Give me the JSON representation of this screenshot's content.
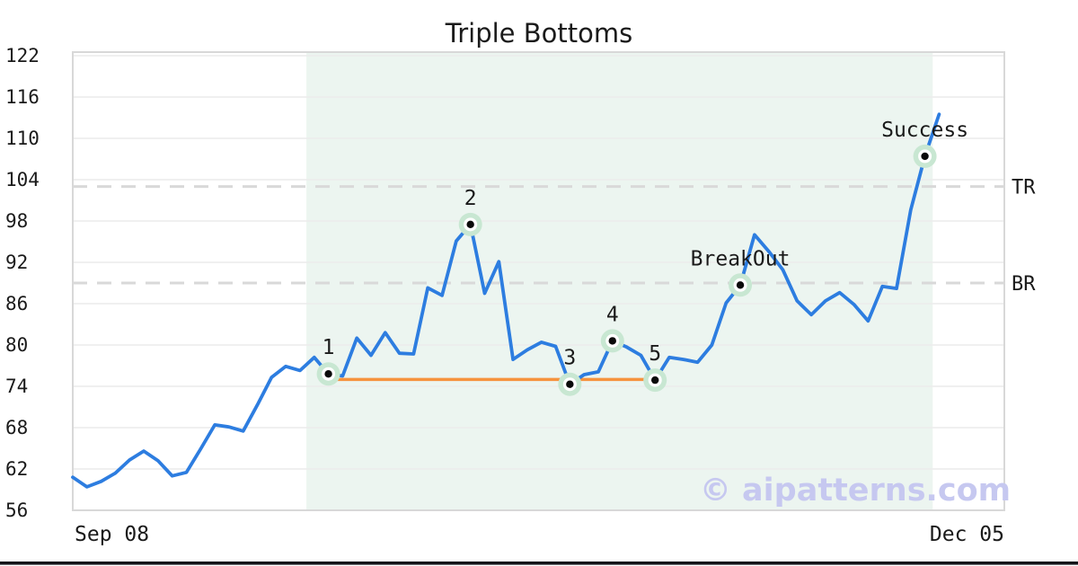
{
  "chart_data": {
    "type": "line",
    "title": "Triple Bottoms",
    "x_start_label": "Sep 08",
    "x_end_label": "Dec 05",
    "ylim": [
      56,
      122
    ],
    "y_ticks": [
      56,
      62,
      68,
      74,
      80,
      86,
      92,
      98,
      104,
      110,
      116,
      122
    ],
    "grid": "horizontal",
    "legend": "none",
    "series": [
      {
        "name": "price",
        "color": "#2d7de0",
        "values": [
          60.8,
          59.4,
          60.2,
          61.4,
          63.3,
          64.6,
          63.2,
          61.0,
          61.5,
          64.9,
          68.4,
          68.1,
          67.5,
          71.3,
          75.3,
          76.9,
          76.3,
          78.2,
          75.8,
          75.5,
          81.0,
          78.5,
          81.8,
          78.8,
          78.7,
          88.3,
          87.2,
          95.1,
          97.5,
          87.5,
          92.1,
          77.9,
          79.3,
          80.4,
          79.8,
          74.3,
          75.7,
          76.1,
          80.6,
          79.7,
          78.5,
          74.9,
          78.2,
          77.9,
          77.5,
          80.0,
          86.1,
          88.7,
          96.0,
          93.6,
          90.9,
          86.4,
          84.4,
          86.4,
          87.6,
          85.9,
          83.5,
          88.5,
          88.2,
          99.6,
          107.4,
          113.5
        ]
      }
    ],
    "markers": [
      {
        "index": 18,
        "label": "1",
        "value": 75.8
      },
      {
        "index": 28,
        "label": "2",
        "value": 97.5
      },
      {
        "index": 35,
        "label": "3",
        "value": 74.3
      },
      {
        "index": 38,
        "label": "4",
        "value": 80.6
      },
      {
        "index": 41,
        "label": "5",
        "value": 74.9
      },
      {
        "index": 47,
        "label": "BreakOut",
        "value": 88.7
      },
      {
        "index": 60,
        "label": "Success",
        "value": 107.4
      }
    ],
    "levels": [
      {
        "label": "TR",
        "value": 103,
        "style": "dashed",
        "color": "#d9d9d9"
      },
      {
        "label": "BR",
        "value": 89,
        "style": "dashed",
        "color": "#d9d9d9"
      }
    ],
    "support_line": {
      "value": 75,
      "from_index": 18,
      "to_index": 41,
      "color": "#f6933e"
    },
    "pattern_region": {
      "from_index": 16.45,
      "to_index": 60.55,
      "color": "#ecf5f0"
    },
    "marker_style": {
      "halo_color": "#c8e7d2",
      "ring_color": "#ffffff",
      "dot_color": "#0a0a0a"
    },
    "grid_color": "#ececec",
    "border_color": "#d8d8d8",
    "text_color": "#1a1a1a"
  },
  "watermark": {
    "text": "© aipatterns.com",
    "color": "#c6c8f0"
  },
  "footer": {
    "bar_color": "#121218"
  }
}
